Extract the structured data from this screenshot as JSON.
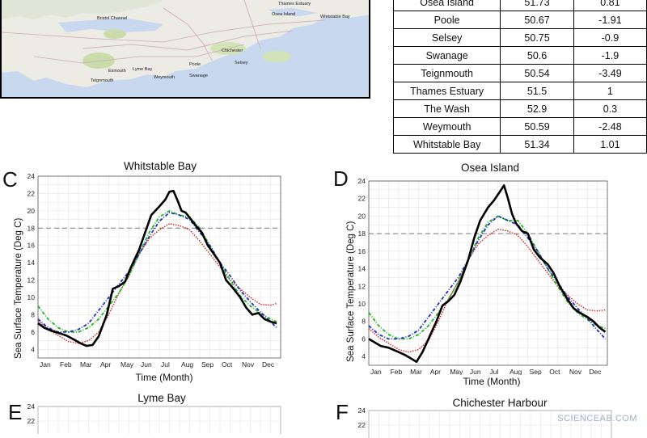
{
  "map": {
    "labels": [
      {
        "text": "Bristol Channel"
      },
      {
        "text": "Thames Estuary"
      },
      {
        "text": "Osea Island"
      },
      {
        "text": "Whitstable Bay"
      },
      {
        "text": "Chichester"
      },
      {
        "text": "Selsey"
      },
      {
        "text": "Poole"
      },
      {
        "text": "Swanage"
      },
      {
        "text": "Weymouth"
      },
      {
        "text": "Lyme Bay"
      },
      {
        "text": "Exmouth"
      },
      {
        "text": "Teignmouth"
      }
    ]
  },
  "table": {
    "rows": [
      [
        "Osea Island",
        "51.73",
        "0.81"
      ],
      [
        "Poole",
        "50.67",
        "-1.91"
      ],
      [
        "Selsey",
        "50.75",
        "-0.9"
      ],
      [
        "Swanage",
        "50.6",
        "-1.9"
      ],
      [
        "Teignmouth",
        "50.54",
        "-3.49"
      ],
      [
        "Thames Estuary",
        "51.5",
        "1"
      ],
      [
        "The Wash",
        "52.9",
        "0.3"
      ],
      [
        "Weymouth",
        "50.59",
        "-2.48"
      ],
      [
        "Whitstable Bay",
        "51.34",
        "1.01"
      ]
    ]
  },
  "panels": {
    "C": {
      "letter": "C",
      "title": "Whitstable Bay"
    },
    "D": {
      "letter": "D",
      "title": "Osea Island"
    },
    "E": {
      "letter": "E",
      "title": "Lyme Bay"
    },
    "F": {
      "letter": "F",
      "title": "Chichester Harbour"
    }
  },
  "watermark": "SCIENCEAB.COM",
  "chart_data": [
    {
      "panel": "C",
      "type": "line",
      "title": "Whitstable Bay",
      "xlabel": "Time (Month)",
      "ylabel": "Sea Surface Temperature (Deg C)",
      "ylim": [
        3,
        24
      ],
      "yticks": [
        4,
        6,
        8,
        10,
        12,
        14,
        16,
        18,
        20,
        22,
        24
      ],
      "xticks": [
        "Jan",
        "Feb",
        "Mar",
        "Apr",
        "May",
        "Jun",
        "Jul",
        "Aug",
        "Sep",
        "Oct",
        "Nov",
        "Dec"
      ],
      "grid": true,
      "reference_line": 18,
      "series": [
        {
          "color": "#000000",
          "style": "solid",
          "x": [
            0,
            0.3,
            0.6,
            1,
            1.4,
            1.8,
            2.1,
            2.4,
            2.7,
            3,
            3.4,
            3.7,
            4,
            4.3,
            4.6,
            5,
            5.3,
            5.6,
            6,
            6.3,
            6.5,
            6.7,
            6.9,
            7.1,
            7.3,
            7.5,
            7.8,
            8.1,
            8.4,
            8.7,
            9,
            9.3,
            9.6,
            10,
            10.3,
            10.6,
            10.9,
            11.2,
            11.5,
            11.8
          ],
          "y": [
            7,
            6.5,
            6.2,
            5.9,
            5.6,
            5.1,
            4.7,
            4.4,
            4.5,
            5.5,
            8,
            11,
            11.3,
            11.8,
            13.5,
            15.5,
            17.5,
            19.5,
            20.5,
            21.3,
            22.2,
            22.3,
            21.2,
            20,
            19.8,
            19.2,
            18.3,
            17.5,
            16,
            15,
            14,
            12,
            11.2,
            10,
            8.8,
            8,
            8.2,
            7.5,
            7.2,
            7
          ]
        },
        {
          "color": "#d03030",
          "style": "dotted",
          "x": [
            0,
            0.5,
            1,
            1.5,
            2,
            2.5,
            3,
            3.5,
            4,
            4.5,
            5,
            5.5,
            6,
            6.5,
            7,
            7.5,
            8,
            8.5,
            9,
            9.5,
            10,
            10.5,
            11,
            11.5,
            11.8
          ],
          "y": [
            7.3,
            6.3,
            5.6,
            4.9,
            4.7,
            5,
            6,
            8,
            10.5,
            12.5,
            15,
            16.8,
            17.8,
            18.5,
            18.3,
            17.8,
            16.5,
            15,
            13.5,
            12,
            11,
            10,
            9.2,
            9.1,
            9.3
          ]
        },
        {
          "color": "#20b820",
          "style": "dashdot",
          "x": [
            0,
            0.5,
            1,
            1.5,
            2,
            2.5,
            3,
            3.5,
            4,
            4.5,
            5,
            5.5,
            6,
            6.5,
            7,
            7.5,
            8,
            8.5,
            9,
            9.5,
            10,
            10.5,
            11,
            11.5,
            11.8
          ],
          "y": [
            9,
            7.5,
            6.5,
            6,
            6,
            6.5,
            7.5,
            9,
            10.5,
            12.5,
            15,
            17.5,
            19.3,
            20,
            19.5,
            19.3,
            18,
            16,
            14,
            12,
            10.2,
            9,
            8.2,
            7.5,
            7.2
          ]
        },
        {
          "color": "#2030c0",
          "style": "dashdot",
          "x": [
            0,
            0.5,
            1,
            1.5,
            2,
            2.5,
            3,
            3.5,
            4,
            4.5,
            5,
            5.5,
            6,
            6.5,
            7,
            7.5,
            8,
            8.5,
            9,
            9.5,
            10,
            10.5,
            11,
            11.5,
            11.8
          ],
          "y": [
            7.5,
            6.5,
            6,
            6,
            6.3,
            7,
            8.5,
            10,
            11.5,
            13,
            15,
            17,
            18.8,
            19.8,
            19.5,
            19,
            17.5,
            16,
            14,
            12.5,
            10.8,
            9.5,
            8.3,
            7.2,
            6.5
          ]
        }
      ]
    },
    {
      "panel": "D",
      "type": "line",
      "title": "Osea Island",
      "xlabel": "Time (Month)",
      "ylabel": "Sea Surface Temperature (Deg C)",
      "ylim": [
        3,
        24
      ],
      "yticks": [
        4,
        6,
        8,
        10,
        12,
        14,
        16,
        18,
        20,
        22,
        24
      ],
      "xticks": [
        "Jan",
        "Feb",
        "Mar",
        "Apr",
        "May",
        "Jun",
        "Jul",
        "Aug",
        "Sep",
        "Oct",
        "Nov",
        "Dec"
      ],
      "grid": true,
      "reference_line": 18,
      "series": [
        {
          "color": "#000000",
          "style": "solid",
          "x": [
            0,
            0.3,
            0.6,
            1,
            1.4,
            1.8,
            2.1,
            2.4,
            2.7,
            3,
            3.4,
            3.7,
            4,
            4.3,
            4.6,
            5,
            5.3,
            5.6,
            6,
            6.3,
            6.6,
            6.8,
            7,
            7.2,
            7.4,
            7.7,
            8,
            8.3,
            8.6,
            9,
            9.3,
            9.6,
            10,
            10.3,
            10.6,
            11,
            11.3,
            11.6,
            11.9
          ],
          "y": [
            6,
            5.6,
            5.2,
            5,
            4.6,
            4.2,
            3.8,
            3.4,
            4.5,
            6,
            8,
            9.8,
            10.3,
            11,
            12.5,
            15,
            17.5,
            19.5,
            21,
            21.8,
            22.8,
            23.5,
            22,
            20.3,
            19.2,
            18.3,
            18,
            16.2,
            15.3,
            14.5,
            13.5,
            12,
            10.5,
            9.5,
            9,
            8.5,
            8,
            7.3,
            6.8
          ]
        },
        {
          "color": "#d03030",
          "style": "dotted",
          "x": [
            0,
            0.5,
            1,
            1.5,
            2,
            2.5,
            3,
            3.5,
            4,
            4.5,
            5,
            5.5,
            6,
            6.5,
            7,
            7.5,
            8,
            8.5,
            9,
            9.5,
            10,
            10.5,
            11,
            11.5,
            11.9
          ],
          "y": [
            7.2,
            6.2,
            5.5,
            4.8,
            4.5,
            4.8,
            5.8,
            8,
            10.5,
            12.5,
            15,
            16.8,
            17.8,
            18.5,
            18.3,
            17.8,
            16.5,
            15,
            13.5,
            12,
            11,
            10,
            9.3,
            9.2,
            9.3
          ]
        },
        {
          "color": "#20b820",
          "style": "dashdot",
          "x": [
            0,
            0.5,
            1,
            1.5,
            2,
            2.5,
            3,
            3.5,
            4,
            4.5,
            5,
            5.5,
            6,
            6.5,
            7,
            7.5,
            8,
            8.5,
            9,
            9.5,
            10,
            10.5,
            11,
            11.5,
            11.9
          ],
          "y": [
            9,
            7.5,
            6.5,
            6,
            6,
            6.5,
            7.5,
            9,
            10.5,
            12.5,
            15,
            17.5,
            19.3,
            20,
            19.5,
            19.5,
            18,
            16,
            14,
            12,
            10.2,
            9,
            8.2,
            7.5,
            7.2
          ]
        },
        {
          "color": "#2030c0",
          "style": "dashdot",
          "x": [
            0,
            0.5,
            1,
            1.5,
            2,
            2.5,
            3,
            3.5,
            4,
            4.5,
            5,
            5.5,
            6,
            6.5,
            7,
            7.5,
            8,
            8.5,
            9,
            9.5,
            10,
            10.5,
            11,
            11.5,
            11.9
          ],
          "y": [
            7.5,
            6.5,
            6,
            6,
            6.3,
            7,
            8.5,
            10,
            11.5,
            13,
            15,
            17.2,
            19,
            20,
            19.5,
            19,
            17.5,
            16,
            14,
            12.5,
            10.8,
            9.5,
            8.3,
            7,
            6
          ]
        }
      ]
    },
    {
      "panel": "E",
      "type": "line",
      "title": "Lyme Bay",
      "yticks": [
        22,
        24
      ],
      "series": []
    },
    {
      "panel": "F",
      "type": "line",
      "title": "Chichester Harbour",
      "yticks": [
        22,
        24
      ],
      "series": []
    }
  ]
}
